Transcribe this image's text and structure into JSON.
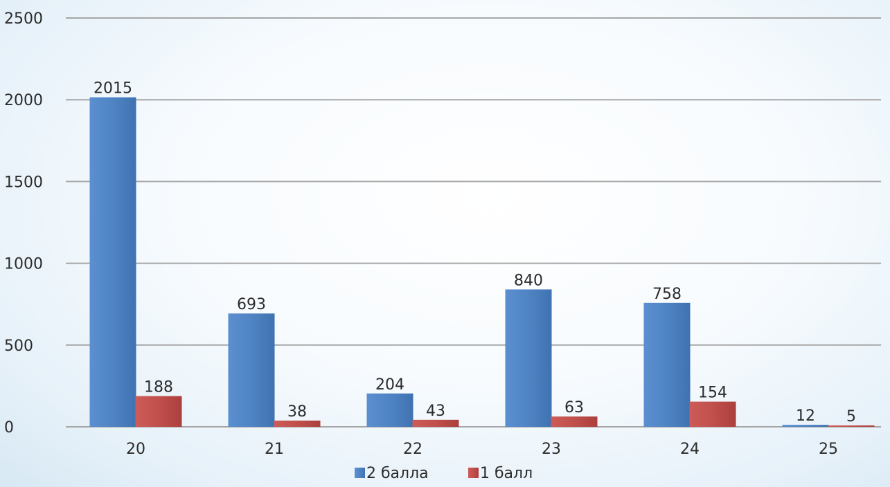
{
  "chart_data": {
    "type": "bar",
    "categories": [
      "20",
      "21",
      "22",
      "23",
      "24",
      "25"
    ],
    "series": [
      {
        "name": "2 балла",
        "values": [
          2015,
          693,
          204,
          840,
          758,
          12
        ],
        "color": "#4a7ebb"
      },
      {
        "name": "1 балл",
        "values": [
          188,
          38,
          43,
          63,
          154,
          5
        ],
        "color": "#be4b48"
      }
    ],
    "title": "",
    "xlabel": "",
    "ylabel": "",
    "ylim": [
      0,
      2500
    ],
    "yticks": [
      "0",
      "500",
      "1000",
      "1500",
      "2000",
      "2500"
    ],
    "grid": true,
    "legend": "bottom",
    "gridline_color": "#a6a6a6"
  }
}
